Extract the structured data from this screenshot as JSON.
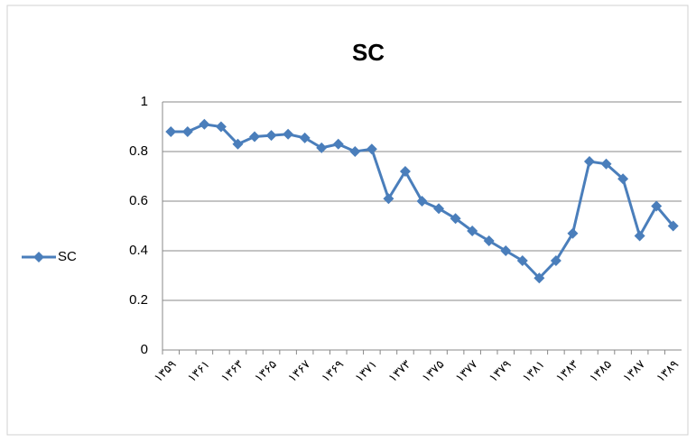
{
  "chart_data": {
    "type": "line",
    "title": "SC",
    "categories": [
      "۱۳۵۹",
      null,
      "۱۳۶۱",
      null,
      "۱۳۶۳",
      null,
      "۱۳۶۵",
      null,
      "۱۳۶۷",
      null,
      "۱۳۶۹",
      null,
      "۱۳۷۱",
      null,
      "۱۳۷۳",
      null,
      "۱۳۷۵",
      null,
      "۱۳۷۷",
      null,
      "۱۳۷۹",
      null,
      "۱۳۸۱",
      null,
      "۱۳۸۳",
      null,
      "۱۳۸۵",
      null,
      "۱۳۸۷",
      null,
      "۱۳۸۹"
    ],
    "series": [
      {
        "name": "SC",
        "color": "#4a7ebb",
        "values": [
          0.88,
          0.88,
          0.91,
          0.9,
          0.83,
          0.86,
          0.865,
          0.87,
          0.855,
          0.815,
          0.83,
          0.8,
          0.81,
          0.61,
          0.72,
          0.6,
          0.57,
          0.53,
          0.48,
          0.44,
          0.4,
          0.36,
          0.29,
          0.36,
          0.47,
          0.76,
          0.75,
          0.69,
          0.46,
          0.58,
          0.5
        ]
      }
    ],
    "ylim": [
      0,
      1
    ],
    "yticks": [
      0,
      0.2,
      0.4,
      0.6,
      0.8,
      1
    ],
    "grid": true,
    "legend": "left"
  }
}
